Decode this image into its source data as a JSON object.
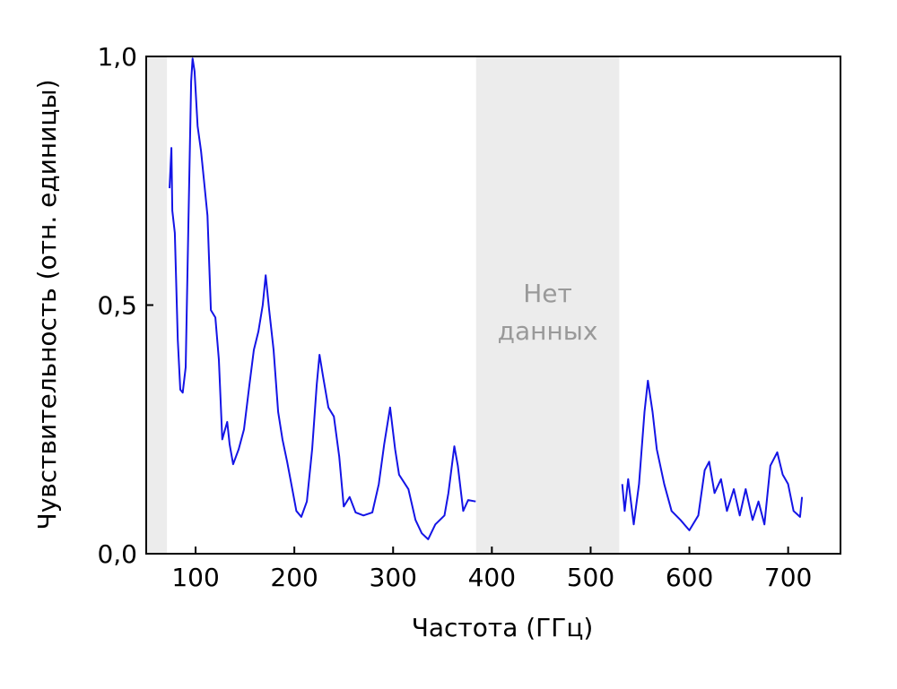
{
  "chart_data": {
    "type": "line",
    "xlabel": "Частота (ГГц)",
    "ylabel": "Чувствительность (отн. единицы)",
    "annotation": [
      "Нет",
      "данных"
    ],
    "shaded_regions": [
      [
        50,
        71
      ],
      [
        384,
        529
      ]
    ],
    "shade_color": "#ececec",
    "x": [
      73.6,
      75.5,
      76.4,
      79,
      82,
      84.5,
      87,
      90,
      92.7,
      95.5,
      97,
      99,
      102,
      105.5,
      109,
      112,
      115.5,
      120,
      123.6,
      127,
      132,
      134.5,
      138,
      143.6,
      149,
      154.5,
      159,
      163.6,
      168,
      171,
      174.5,
      179,
      183.6,
      188,
      192.7,
      197,
      202,
      207,
      212.7,
      218,
      222.7,
      225.5,
      229,
      234.5,
      240,
      245.5,
      250,
      256,
      262,
      270,
      279,
      285.5,
      291,
      297,
      302,
      306,
      315.5,
      322.7,
      329,
      335.5,
      342.7,
      352,
      356,
      362,
      365.5,
      371,
      376,
      383.6,
      null,
      532,
      534.5,
      538,
      543.6,
      549,
      554.5,
      558,
      562.7,
      567,
      574.5,
      582,
      591,
      600,
      609,
      615.5,
      620,
      625.5,
      632,
      638,
      645,
      651,
      657,
      664,
      670,
      676,
      682,
      689,
      694.5,
      700,
      705.5,
      712,
      714
    ],
    "series": [
      {
        "name": "Чувствительность",
        "color": "#1414e6",
        "values": [
          0.735,
          0.816,
          0.69,
          0.645,
          0.43,
          0.33,
          0.324,
          0.375,
          0.66,
          0.95,
          0.996,
          0.97,
          0.86,
          0.81,
          0.74,
          0.68,
          0.49,
          0.475,
          0.39,
          0.23,
          0.265,
          0.22,
          0.18,
          0.21,
          0.25,
          0.34,
          0.41,
          0.447,
          0.5,
          0.56,
          0.49,
          0.41,
          0.285,
          0.23,
          0.185,
          0.14,
          0.086,
          0.074,
          0.105,
          0.21,
          0.34,
          0.4,
          0.357,
          0.294,
          0.276,
          0.195,
          0.095,
          0.114,
          0.083,
          0.077,
          0.083,
          0.14,
          0.22,
          0.294,
          0.21,
          0.159,
          0.13,
          0.068,
          0.041,
          0.029,
          0.059,
          0.077,
          0.122,
          0.216,
          0.177,
          0.086,
          0.108,
          0.105,
          null,
          0.14,
          0.086,
          0.15,
          0.059,
          0.14,
          0.285,
          0.348,
          0.285,
          0.21,
          0.14,
          0.086,
          0.068,
          0.047,
          0.077,
          0.168,
          0.185,
          0.122,
          0.15,
          0.086,
          0.13,
          0.077,
          0.13,
          0.068,
          0.105,
          0.059,
          0.177,
          0.204,
          0.159,
          0.14,
          0.086,
          0.074,
          0.114
        ]
      }
    ],
    "xlim": [
      50,
      753
    ],
    "ylim": [
      0,
      1
    ],
    "xticks": [
      100,
      200,
      300,
      400,
      500,
      600,
      700
    ],
    "yticks": [
      {
        "value": 0,
        "label": "0,0"
      },
      {
        "value": 0.5,
        "label": "0,5"
      },
      {
        "value": 1,
        "label": "1,0"
      }
    ]
  }
}
